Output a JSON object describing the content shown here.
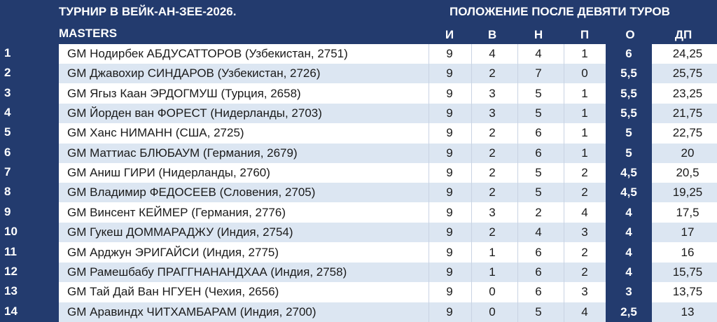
{
  "header": {
    "title_line1": "ТУРНИР В ВЕЙК-АН-ЗЕЕ-2026.",
    "title_line2": "MASTERS",
    "subtitle": "ПОЛОЖЕНИЕ ПОСЛЕ ДЕВЯТИ ТУРОВ",
    "columns": {
      "games": "И",
      "wins": "В",
      "draws": "Н",
      "losses": "П",
      "points": "О",
      "tiebreak": "ДП"
    }
  },
  "colors": {
    "navy": "#233b6e",
    "stripe": "#dce6f2"
  },
  "rows": [
    {
      "rank": "1",
      "name": "GM Нодирбек АБДУСАТТОРОВ (Узбекистан, 2751)",
      "games": "9",
      "wins": "4",
      "draws": "4",
      "losses": "1",
      "points": "6",
      "tiebreak": "24,25"
    },
    {
      "rank": "2",
      "name": "GM Джавохир СИНДАРОВ (Узбекистан, 2726)",
      "games": "9",
      "wins": "2",
      "draws": "7",
      "losses": "0",
      "points": "5,5",
      "tiebreak": "25,75"
    },
    {
      "rank": "3",
      "name": "GM Ягыз Каан ЭРДОГМУШ (Турция, 2658)",
      "games": "9",
      "wins": "3",
      "draws": "5",
      "losses": "1",
      "points": "5,5",
      "tiebreak": "23,25"
    },
    {
      "rank": "4",
      "name": "GM Йорден ван ФОРЕСТ (Нидерланды, 2703)",
      "games": "9",
      "wins": "3",
      "draws": "5",
      "losses": "1",
      "points": "5,5",
      "tiebreak": "21,75"
    },
    {
      "rank": "5",
      "name": "GM Ханс НИМАНН (США, 2725)",
      "games": "9",
      "wins": "2",
      "draws": "6",
      "losses": "1",
      "points": "5",
      "tiebreak": "22,75"
    },
    {
      "rank": "6",
      "name": "GM Маттиас БЛЮБАУМ (Германия, 2679)",
      "games": "9",
      "wins": "2",
      "draws": "6",
      "losses": "1",
      "points": "5",
      "tiebreak": "20"
    },
    {
      "rank": "7",
      "name": "GM Аниш ГИРИ (Нидерланды, 2760)",
      "games": "9",
      "wins": "2",
      "draws": "5",
      "losses": "2",
      "points": "4,5",
      "tiebreak": "20,5"
    },
    {
      "rank": "8",
      "name": "GM Владимир ФЕДОСЕЕВ (Словения, 2705)",
      "games": "9",
      "wins": "2",
      "draws": "5",
      "losses": "2",
      "points": "4,5",
      "tiebreak": "19,25"
    },
    {
      "rank": "9",
      "name": "GM Винсент КЕЙМЕР (Германия, 2776)",
      "games": "9",
      "wins": "3",
      "draws": "2",
      "losses": "4",
      "points": "4",
      "tiebreak": "17,5"
    },
    {
      "rank": "10",
      "name": "GM Гукеш ДОММАРАДЖУ (Индия, 2754)",
      "games": "9",
      "wins": "2",
      "draws": "4",
      "losses": "3",
      "points": "4",
      "tiebreak": "17"
    },
    {
      "rank": "11",
      "name": "GM Арджун ЭРИГАЙСИ (Индия, 2775)",
      "games": "9",
      "wins": "1",
      "draws": "6",
      "losses": "2",
      "points": "4",
      "tiebreak": "16"
    },
    {
      "rank": "12",
      "name": "GM Рамешбабу ПРАГГНАНАНДХАА (Индия, 2758)",
      "games": "9",
      "wins": "1",
      "draws": "6",
      "losses": "2",
      "points": "4",
      "tiebreak": "15,75"
    },
    {
      "rank": "13",
      "name": "GM Тай Дай Ван НГУЕН (Чехия, 2656)",
      "games": "9",
      "wins": "0",
      "draws": "6",
      "losses": "3",
      "points": "3",
      "tiebreak": "13,75"
    },
    {
      "rank": "14",
      "name": "GM Аравиндх ЧИТХАМБАРАМ (Индия, 2700)",
      "games": "9",
      "wins": "0",
      "draws": "5",
      "losses": "4",
      "points": "2,5",
      "tiebreak": "13"
    }
  ]
}
